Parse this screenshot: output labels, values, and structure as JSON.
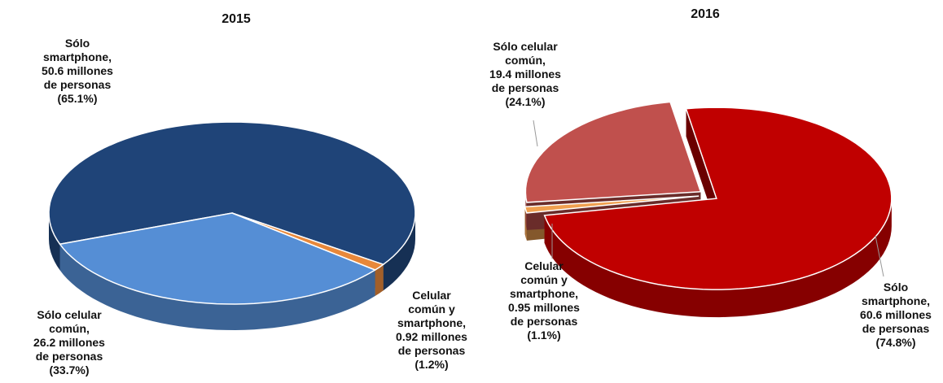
{
  "chart_data": [
    {
      "type": "pie",
      "title": "2015",
      "categories": [
        "Sólo smartphone,",
        "Celular común y smartphone,",
        "Sólo celular común,"
      ],
      "values": [
        65.1,
        1.2,
        33.7
      ],
      "value_labels": [
        "50.6 millones de personas (65.1%)",
        "0.92 millones de personas (1.2%)",
        "26.2 millones de personas (33.7%)"
      ],
      "colors": [
        "#1f4478",
        "#e8883a",
        "#558ed5"
      ],
      "explode": false
    },
    {
      "type": "pie",
      "title": "2016",
      "categories": [
        "Sólo smartphone,",
        "Celular común y smartphone,",
        "Sólo celular común,"
      ],
      "values": [
        74.8,
        1.1,
        24.1
      ],
      "value_labels": [
        "60.6 millones de personas (74.8%)",
        "0.95 millones de personas (1.1%)",
        "19.4 millones de personas (24.1%)"
      ],
      "colors": [
        "#c00000",
        "#f0a050",
        "#c0504d"
      ],
      "explode": true
    }
  ]
}
